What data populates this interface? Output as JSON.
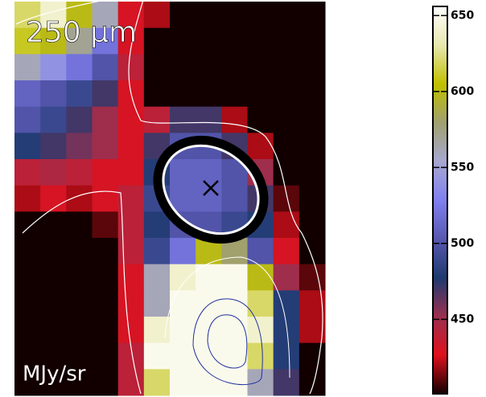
{
  "chart_data": {
    "type": "heatmap",
    "title": "250 μm",
    "colorbar_label": "MJy/sr",
    "z": [
      [
        620,
        640,
        600,
        560,
        430,
        420,
        401,
        401,
        401,
        401,
        401,
        401
      ],
      [
        610,
        600,
        570,
        520,
        430,
        401,
        401,
        401,
        401,
        401,
        401,
        401
      ],
      [
        560,
        540,
        520,
        500,
        440,
        401,
        401,
        401,
        401,
        401,
        401,
        401
      ],
      [
        510,
        500,
        490,
        470,
        430,
        401,
        401,
        401,
        401,
        401,
        401,
        401
      ],
      [
        500,
        490,
        470,
        450,
        430,
        440,
        470,
        470,
        420,
        401,
        401,
        401
      ],
      [
        480,
        470,
        460,
        450,
        430,
        470,
        500,
        500,
        470,
        420,
        401,
        401
      ],
      [
        440,
        445,
        440,
        430,
        430,
        480,
        510,
        510,
        500,
        450,
        401,
        401
      ],
      [
        420,
        430,
        420,
        430,
        440,
        490,
        510,
        510,
        500,
        470,
        410,
        401
      ],
      [
        401,
        401,
        401,
        410,
        440,
        480,
        500,
        500,
        490,
        480,
        420,
        401
      ],
      [
        401,
        401,
        401,
        401,
        440,
        490,
        520,
        600,
        580,
        500,
        430,
        401
      ],
      [
        401,
        401,
        401,
        401,
        430,
        560,
        640,
        650,
        650,
        600,
        450,
        410
      ],
      [
        401,
        401,
        401,
        401,
        430,
        560,
        650,
        650,
        650,
        620,
        480,
        420
      ],
      [
        401,
        401,
        401,
        401,
        430,
        640,
        650,
        650,
        650,
        640,
        480,
        420
      ],
      [
        401,
        401,
        401,
        401,
        440,
        650,
        650,
        650,
        650,
        620,
        480,
        401
      ],
      [
        401,
        401,
        401,
        401,
        440,
        620,
        650,
        650,
        650,
        560,
        470,
        401
      ]
    ],
    "clim": [
      401,
      656
    ],
    "cticks": [
      450,
      500,
      550,
      600,
      650
    ],
    "colormap": [
      "#120000",
      "#e0101c",
      "#9a3050",
      "#1e3a70",
      "#5858b0",
      "#8080f0",
      "#a8a8d0",
      "#a0a070",
      "#c0c000",
      "#e8e8b0",
      "#ffffff"
    ]
  }
}
